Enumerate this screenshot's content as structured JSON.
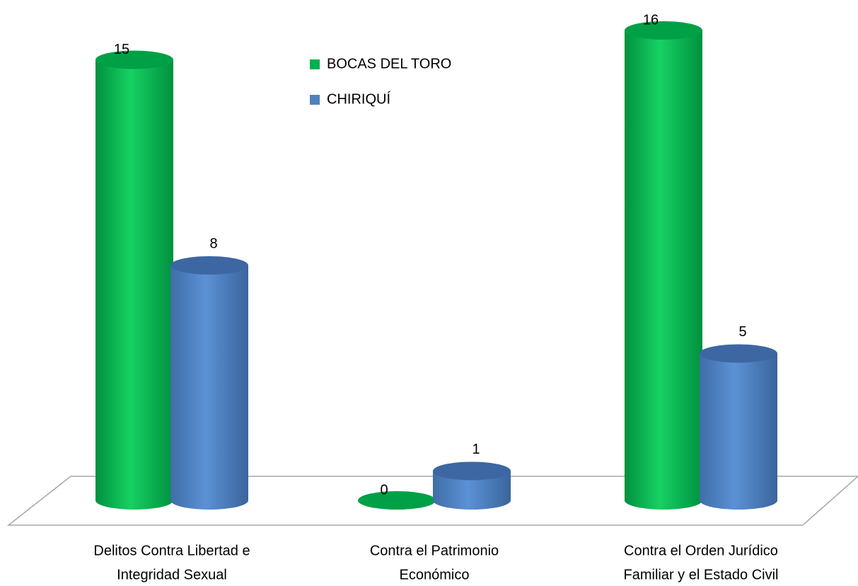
{
  "chart_data": {
    "type": "bar3d",
    "categories": [
      [
        "Delitos  Contra Libertad e",
        "Integridad Sexual"
      ],
      [
        "Contra el Patrimonio",
        "Económico"
      ],
      [
        "Contra el Orden Jurídico",
        "Familiar y el Estado Civil"
      ]
    ],
    "series": [
      {
        "name": "BOCAS DEL TORO",
        "color": "#00b050",
        "values": [
          15,
          0,
          16
        ]
      },
      {
        "name": "CHIRIQUÍ",
        "color": "#4f81bd",
        "values": [
          8,
          1,
          5
        ]
      }
    ],
    "legend": "top-center"
  }
}
